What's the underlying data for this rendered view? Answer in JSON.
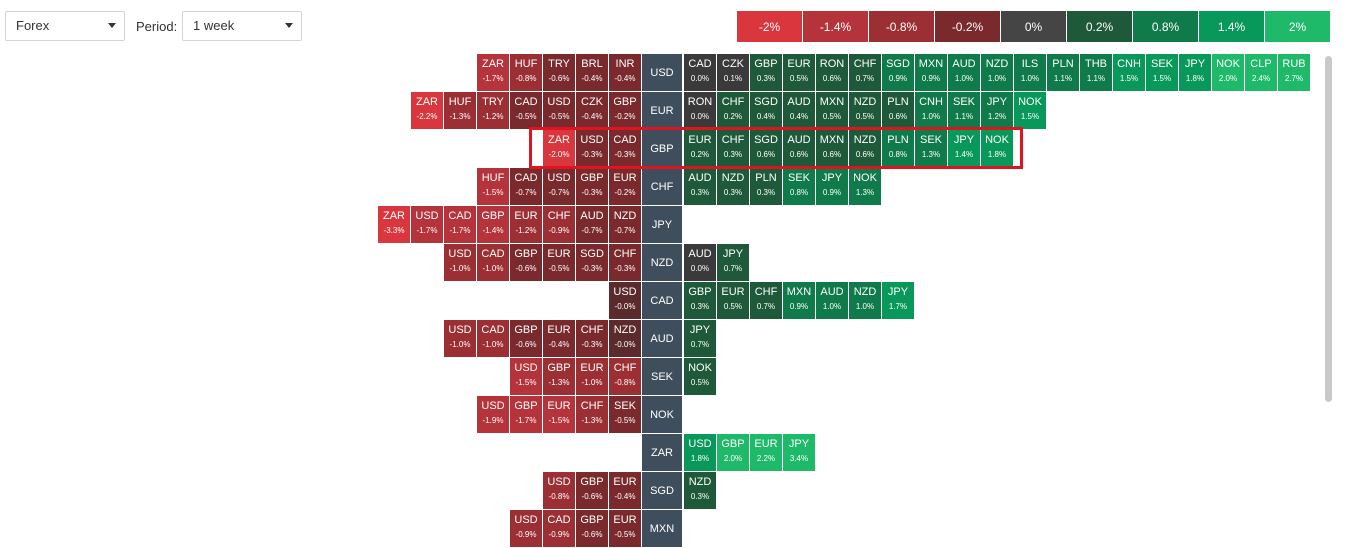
{
  "toolbar": {
    "market": "Forex",
    "period_label": "Period:",
    "period_value": "1 week"
  },
  "legend": [
    {
      "label": "-2%",
      "color": "#d9363e"
    },
    {
      "label": "-1.4%",
      "color": "#b5333a"
    },
    {
      "label": "-0.8%",
      "color": "#9c2f34"
    },
    {
      "label": "-0.2%",
      "color": "#7a2a2d"
    },
    {
      "label": "0%",
      "color": "#454545"
    },
    {
      "label": "0.2%",
      "color": "#1e5a3a"
    },
    {
      "label": "0.8%",
      "color": "#0f7a4a"
    },
    {
      "label": "1.4%",
      "color": "#07985a"
    },
    {
      "label": "2%",
      "color": "#1fb96a"
    }
  ],
  "rows": [
    {
      "base": "USD",
      "left": [
        [
          "ZAR",
          "-1.7%"
        ],
        [
          "HUF",
          "-0.8%"
        ],
        [
          "TRY",
          "-0.6%"
        ],
        [
          "BRL",
          "-0.4%"
        ],
        [
          "INR",
          "-0.4%"
        ]
      ],
      "right": [
        [
          "CAD",
          "0.0%"
        ],
        [
          "CZK",
          "0.1%"
        ],
        [
          "GBP",
          "0.3%"
        ],
        [
          "EUR",
          "0.5%"
        ],
        [
          "RON",
          "0.6%"
        ],
        [
          "CHF",
          "0.7%"
        ],
        [
          "SGD",
          "0.9%"
        ],
        [
          "MXN",
          "0.9%"
        ],
        [
          "AUD",
          "1.0%"
        ],
        [
          "NZD",
          "1.0%"
        ],
        [
          "ILS",
          "1.0%"
        ],
        [
          "PLN",
          "1.1%"
        ],
        [
          "THB",
          "1.1%"
        ],
        [
          "CNH",
          "1.5%"
        ],
        [
          "SEK",
          "1.5%"
        ],
        [
          "JPY",
          "1.8%"
        ],
        [
          "NOK",
          "2.0%"
        ],
        [
          "CLP",
          "2.4%"
        ],
        [
          "RUB",
          "2.7%"
        ]
      ]
    },
    {
      "base": "EUR",
      "left": [
        [
          "ZAR",
          "-2.2%"
        ],
        [
          "HUF",
          "-1.3%"
        ],
        [
          "TRY",
          "-1.2%"
        ],
        [
          "CAD",
          "-0.5%"
        ],
        [
          "USD",
          "-0.5%"
        ],
        [
          "CZK",
          "-0.4%"
        ],
        [
          "GBP",
          "-0.2%"
        ]
      ],
      "right": [
        [
          "RON",
          "0.0%"
        ],
        [
          "CHF",
          "0.2%"
        ],
        [
          "SGD",
          "0.4%"
        ],
        [
          "AUD",
          "0.4%"
        ],
        [
          "MXN",
          "0.5%"
        ],
        [
          "NZD",
          "0.5%"
        ],
        [
          "PLN",
          "0.6%"
        ],
        [
          "CNH",
          "1.0%"
        ],
        [
          "SEK",
          "1.1%"
        ],
        [
          "JPY",
          "1.2%"
        ],
        [
          "NOK",
          "1.5%"
        ]
      ]
    },
    {
      "base": "GBP",
      "left": [
        [
          "ZAR",
          "-2.0%"
        ],
        [
          "USD",
          "-0.3%"
        ],
        [
          "CAD",
          "-0.3%"
        ]
      ],
      "right": [
        [
          "EUR",
          "0.2%"
        ],
        [
          "CHF",
          "0.3%"
        ],
        [
          "SGD",
          "0.6%"
        ],
        [
          "AUD",
          "0.6%"
        ],
        [
          "MXN",
          "0.6%"
        ],
        [
          "NZD",
          "0.6%"
        ],
        [
          "PLN",
          "0.8%"
        ],
        [
          "SEK",
          "1.3%"
        ],
        [
          "JPY",
          "1.4%"
        ],
        [
          "NOK",
          "1.8%"
        ]
      ]
    },
    {
      "base": "CHF",
      "left": [
        [
          "HUF",
          "-1.5%"
        ],
        [
          "CAD",
          "-0.7%"
        ],
        [
          "USD",
          "-0.7%"
        ],
        [
          "GBP",
          "-0.3%"
        ],
        [
          "EUR",
          "-0.2%"
        ]
      ],
      "right": [
        [
          "AUD",
          "0.3%"
        ],
        [
          "NZD",
          "0.3%"
        ],
        [
          "PLN",
          "0.3%"
        ],
        [
          "SEK",
          "0.8%"
        ],
        [
          "JPY",
          "0.9%"
        ],
        [
          "NOK",
          "1.3%"
        ]
      ]
    },
    {
      "base": "JPY",
      "left": [
        [
          "ZAR",
          "-3.3%"
        ],
        [
          "USD",
          "-1.7%"
        ],
        [
          "CAD",
          "-1.7%"
        ],
        [
          "GBP",
          "-1.4%"
        ],
        [
          "EUR",
          "-1.2%"
        ],
        [
          "CHF",
          "-0.9%"
        ],
        [
          "AUD",
          "-0.7%"
        ],
        [
          "NZD",
          "-0.7%"
        ]
      ],
      "right": []
    },
    {
      "base": "NZD",
      "left": [
        [
          "USD",
          "-1.0%"
        ],
        [
          "CAD",
          "-1.0%"
        ],
        [
          "GBP",
          "-0.6%"
        ],
        [
          "EUR",
          "-0.5%"
        ],
        [
          "SGD",
          "-0.3%"
        ],
        [
          "CHF",
          "-0.3%"
        ]
      ],
      "right": [
        [
          "AUD",
          "0.0%"
        ],
        [
          "JPY",
          "0.7%"
        ]
      ]
    },
    {
      "base": "CAD",
      "left": [
        [
          "USD",
          "-0.0%"
        ]
      ],
      "right": [
        [
          "GBP",
          "0.3%"
        ],
        [
          "EUR",
          "0.5%"
        ],
        [
          "CHF",
          "0.7%"
        ],
        [
          "MXN",
          "0.9%"
        ],
        [
          "AUD",
          "1.0%"
        ],
        [
          "NZD",
          "1.0%"
        ],
        [
          "JPY",
          "1.7%"
        ]
      ]
    },
    {
      "base": "AUD",
      "left": [
        [
          "USD",
          "-1.0%"
        ],
        [
          "CAD",
          "-1.0%"
        ],
        [
          "GBP",
          "-0.6%"
        ],
        [
          "EUR",
          "-0.4%"
        ],
        [
          "CHF",
          "-0.3%"
        ],
        [
          "NZD",
          "-0.0%"
        ]
      ],
      "right": [
        [
          "JPY",
          "0.7%"
        ]
      ]
    },
    {
      "base": "SEK",
      "left": [
        [
          "USD",
          "-1.5%"
        ],
        [
          "GBP",
          "-1.3%"
        ],
        [
          "EUR",
          "-1.0%"
        ],
        [
          "CHF",
          "-0.8%"
        ]
      ],
      "right": [
        [
          "NOK",
          "0.5%"
        ]
      ]
    },
    {
      "base": "NOK",
      "left": [
        [
          "USD",
          "-1.9%"
        ],
        [
          "GBP",
          "-1.7%"
        ],
        [
          "EUR",
          "-1.5%"
        ],
        [
          "CHF",
          "-1.3%"
        ],
        [
          "SEK",
          "-0.5%"
        ]
      ],
      "right": []
    },
    {
      "base": "ZAR",
      "left": [],
      "right": [
        [
          "USD",
          "1.8%"
        ],
        [
          "GBP",
          "2.0%"
        ],
        [
          "EUR",
          "2.2%"
        ],
        [
          "JPY",
          "3.4%"
        ]
      ]
    },
    {
      "base": "SGD",
      "left": [
        [
          "USD",
          "-0.8%"
        ],
        [
          "GBP",
          "-0.6%"
        ],
        [
          "EUR",
          "-0.4%"
        ]
      ],
      "right": [
        [
          "NZD",
          "0.3%"
        ]
      ]
    },
    {
      "base": "MXN",
      "left": [
        [
          "USD",
          "-0.9%"
        ],
        [
          "CAD",
          "-0.9%"
        ],
        [
          "GBP",
          "-0.6%"
        ],
        [
          "EUR",
          "-0.5%"
        ]
      ],
      "right": []
    }
  ]
}
